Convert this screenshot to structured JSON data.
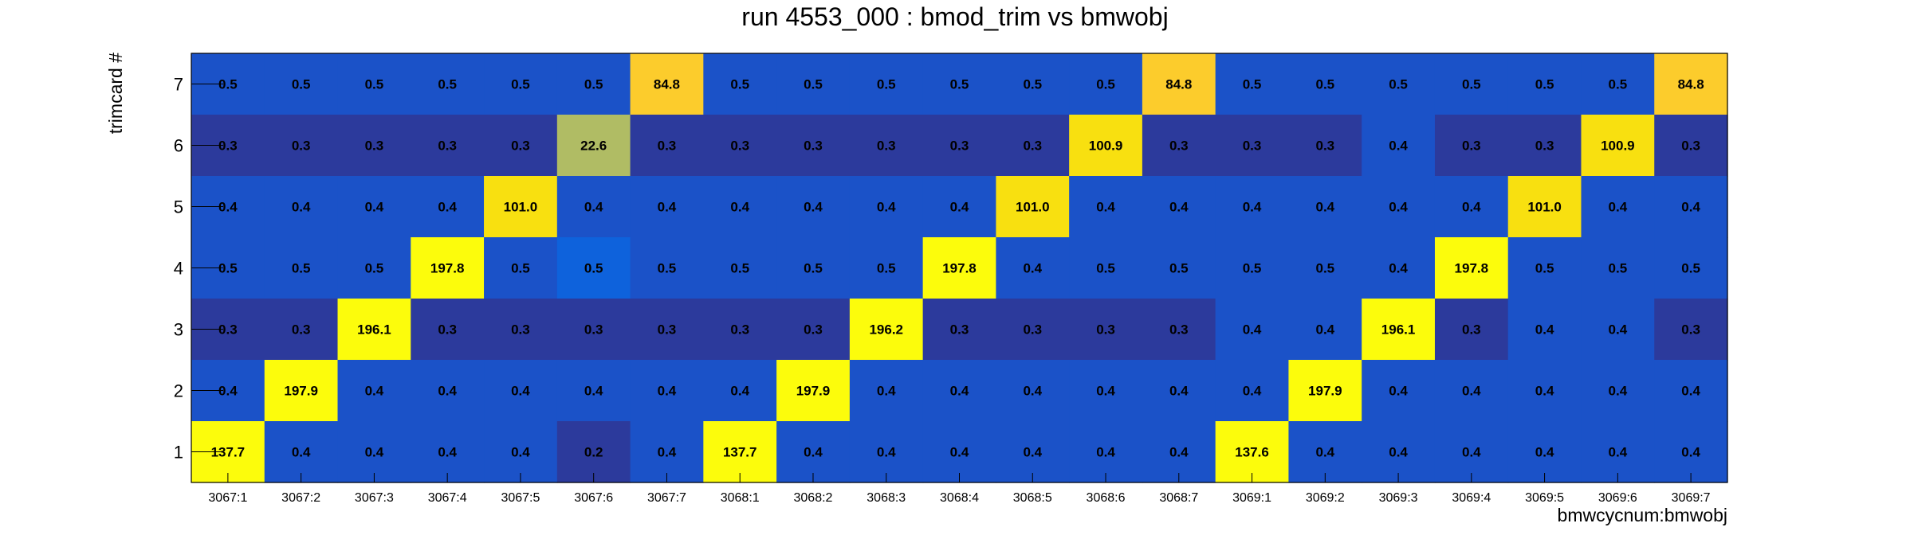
{
  "chart_data": {
    "type": "heatmap",
    "title": "run 4553_000 : bmod_trim vs bmwobj",
    "xlabel": "bmwcycnum:bmwobj",
    "ylabel": "trimcard #",
    "x_categories": [
      "3067:1",
      "3067:2",
      "3067:3",
      "3067:4",
      "3067:5",
      "3067:6",
      "3067:7",
      "3068:1",
      "3068:2",
      "3068:3",
      "3068:4",
      "3068:5",
      "3068:6",
      "3068:7",
      "3069:1",
      "3069:2",
      "3069:3",
      "3069:4",
      "3069:5",
      "3069:6",
      "3069:7"
    ],
    "y_categories": [
      "1",
      "2",
      "3",
      "4",
      "5",
      "6",
      "7"
    ],
    "rows": [
      {
        "y": "7",
        "values": [
          "0.5",
          "0.5",
          "0.5",
          "0.5",
          "0.5",
          "0.5",
          "84.8",
          "0.5",
          "0.5",
          "0.5",
          "0.5",
          "0.5",
          "0.5",
          "84.8",
          "0.5",
          "0.5",
          "0.5",
          "0.5",
          "0.5",
          "0.5",
          "84.8"
        ]
      },
      {
        "y": "6",
        "values": [
          "0.3",
          "0.3",
          "0.3",
          "0.3",
          "0.3",
          "22.6",
          "0.3",
          "0.3",
          "0.3",
          "0.3",
          "0.3",
          "0.3",
          "100.9",
          "0.3",
          "0.3",
          "0.3",
          "0.4",
          "0.3",
          "0.3",
          "100.9",
          "0.3"
        ]
      },
      {
        "y": "5",
        "values": [
          "0.4",
          "0.4",
          "0.4",
          "0.4",
          "101.0",
          "0.4",
          "0.4",
          "0.4",
          "0.4",
          "0.4",
          "0.4",
          "101.0",
          "0.4",
          "0.4",
          "0.4",
          "0.4",
          "0.4",
          "0.4",
          "101.0",
          "0.4",
          "0.4"
        ]
      },
      {
        "y": "4",
        "values": [
          "0.5",
          "0.5",
          "0.5",
          "197.8",
          "0.5",
          "0.5",
          "0.5",
          "0.5",
          "0.5",
          "0.5",
          "197.8",
          "0.4",
          "0.5",
          "0.5",
          "0.5",
          "0.5",
          "0.4",
          "197.8",
          "0.5",
          "0.5",
          "0.5"
        ]
      },
      {
        "y": "3",
        "values": [
          "0.3",
          "0.3",
          "196.1",
          "0.3",
          "0.3",
          "0.3",
          "0.3",
          "0.3",
          "0.3",
          "196.2",
          "0.3",
          "0.3",
          "0.3",
          "0.3",
          "0.4",
          "0.4",
          "196.1",
          "0.3",
          "0.4",
          "0.4",
          "0.3"
        ]
      },
      {
        "y": "2",
        "values": [
          "0.4",
          "197.9",
          "0.4",
          "0.4",
          "0.4",
          "0.4",
          "0.4",
          "0.4",
          "197.9",
          "0.4",
          "0.4",
          "0.4",
          "0.4",
          "0.4",
          "0.4",
          "197.9",
          "0.4",
          "0.4",
          "0.4",
          "0.4",
          "0.4"
        ]
      },
      {
        "y": "1",
        "values": [
          "137.7",
          "0.4",
          "0.4",
          "0.4",
          "0.4",
          "0.2",
          "0.4",
          "137.7",
          "0.4",
          "0.4",
          "0.4",
          "0.4",
          "0.4",
          "0.4",
          "137.6",
          "0.4",
          "0.4",
          "0.4",
          "0.4",
          "0.4",
          "0.4"
        ]
      }
    ],
    "colors": {
      "low": "#2c3a9c",
      "mid": "#1b52c8",
      "midlight": "#0e62dc",
      "olive": "#b0bc64",
      "gold": "#fccc2c",
      "amber": "#f8e010",
      "yellow": "#fcfc0c"
    }
  }
}
